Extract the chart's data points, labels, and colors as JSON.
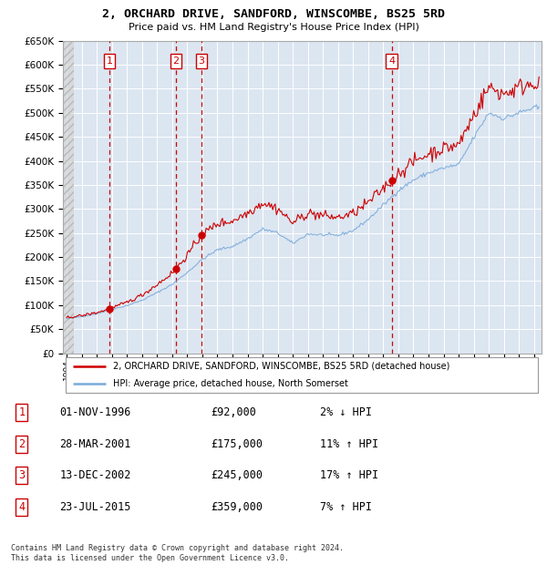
{
  "title": "2, ORCHARD DRIVE, SANDFORD, WINSCOMBE, BS25 5RD",
  "subtitle": "Price paid vs. HM Land Registry's House Price Index (HPI)",
  "legend_line1": "2, ORCHARD DRIVE, SANDFORD, WINSCOMBE, BS25 5RD (detached house)",
  "legend_line2": "HPI: Average price, detached house, North Somerset",
  "footnote": "Contains HM Land Registry data © Crown copyright and database right 2024.\nThis data is licensed under the Open Government Licence v3.0.",
  "table_entries": [
    {
      "num": 1,
      "date": "01-NOV-1996",
      "price": "£92,000",
      "hpi": "2% ↓ HPI"
    },
    {
      "num": 2,
      "date": "28-MAR-2001",
      "price": "£175,000",
      "hpi": "11% ↑ HPI"
    },
    {
      "num": 3,
      "date": "13-DEC-2002",
      "price": "£245,000",
      "hpi": "17% ↑ HPI"
    },
    {
      "num": 4,
      "date": "23-JUL-2015",
      "price": "£359,000",
      "hpi": "7% ↑ HPI"
    }
  ],
  "sale_dates_num": [
    1996.833,
    2001.24,
    2002.95,
    2015.556
  ],
  "sale_prices": [
    92000,
    175000,
    245000,
    359000
  ],
  "sale_labels": [
    "1",
    "2",
    "3",
    "4"
  ],
  "hpi_color": "#7aabdb",
  "price_color": "#cc0000",
  "vline_color": "#cc0000",
  "plot_bg": "#dce6f1",
  "grid_color": "#ffffff",
  "ylim": [
    0,
    650000
  ],
  "yticks": [
    0,
    50000,
    100000,
    150000,
    200000,
    250000,
    300000,
    350000,
    400000,
    450000,
    500000,
    550000,
    600000,
    650000
  ],
  "xlim_start": 1993.75,
  "xlim_end": 2025.5
}
